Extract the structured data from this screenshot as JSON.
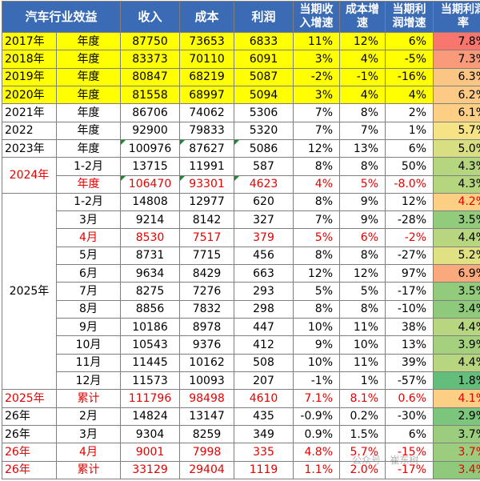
{
  "headers": [
    "汽车行业效益",
    "收入",
    "成本",
    "利润",
    "当期收入增速",
    "成本增速",
    "当期利润增速",
    "当期利润率"
  ],
  "header_big": [
    true,
    true,
    true,
    true,
    false,
    false,
    false,
    false
  ],
  "rows": [
    {
      "col0": "2017年",
      "col1": "年度",
      "revenue": "87750",
      "cost": "73653",
      "profit": "6833",
      "rev_growth": "11%",
      "cost_growth": "12%",
      "profit_growth": "6%",
      "margin": "7.8%",
      "margin_color": "#f8766d",
      "row_style": "yellow",
      "col0_red": false,
      "col1_red": false,
      "vals_red": false,
      "margin_red": false,
      "marks": false
    },
    {
      "col0": "2018年",
      "col1": "年度",
      "revenue": "83373",
      "cost": "70110",
      "profit": "6091",
      "rev_growth": "3%",
      "cost_growth": "4%",
      "profit_growth": "-5%",
      "margin": "7.3%",
      "margin_color": "#f99a7a",
      "row_style": "yellow",
      "col0_red": false,
      "col1_red": false,
      "vals_red": false,
      "margin_red": false,
      "marks": false
    },
    {
      "col0": "2019年",
      "col1": "年度",
      "revenue": "80847",
      "cost": "68219",
      "profit": "5087",
      "rev_growth": "-2%",
      "cost_growth": "-1%",
      "profit_growth": "-16%",
      "margin": "6.3%",
      "margin_color": "#fbc583",
      "row_style": "yellow",
      "col0_red": false,
      "col1_red": false,
      "vals_red": false,
      "margin_red": false,
      "marks": false
    },
    {
      "col0": "2020年",
      "col1": "年度",
      "revenue": "81558",
      "cost": "68997",
      "profit": "5094",
      "rev_growth": "3%",
      "cost_growth": "4%",
      "profit_growth": "4%",
      "margin": "6.2%",
      "margin_color": "#fcca84",
      "row_style": "yellow",
      "col0_red": false,
      "col1_red": false,
      "vals_red": false,
      "margin_red": false,
      "marks": false
    },
    {
      "col0": "2021年",
      "col1": "年度",
      "revenue": "86706",
      "cost": "74062",
      "profit": "5306",
      "rev_growth": "7%",
      "cost_growth": "8%",
      "profit_growth": "2%",
      "margin": "6.1%",
      "margin_color": "#fccf85",
      "row_style": "plain",
      "col0_red": false,
      "col1_red": false,
      "vals_red": false,
      "margin_red": false,
      "marks": false
    },
    {
      "col0": "2022",
      "col1": "年度",
      "revenue": "92900",
      "cost": "79833",
      "profit": "5320",
      "rev_growth": "7%",
      "cost_growth": "7%",
      "profit_growth": "1%",
      "margin": "5.7%",
      "margin_color": "#f5e385",
      "row_style": "plain",
      "col0_red": false,
      "col1_red": false,
      "vals_red": false,
      "margin_red": false,
      "marks": false
    },
    {
      "col0": "2023年",
      "col1": "年度",
      "revenue": "100976",
      "cost": "87627",
      "profit": "5086",
      "rev_growth": "12%",
      "cost_growth": "13%",
      "profit_growth": "6%",
      "margin": "5.0%",
      "margin_color": "#d7df82",
      "row_style": "plain",
      "col0_red": false,
      "col1_red": false,
      "vals_red": false,
      "margin_red": false,
      "marks": true
    },
    {
      "col0": "",
      "col1": "1-2月",
      "revenue": "13715",
      "cost": "11991",
      "profit": "587",
      "rev_growth": "8%",
      "cost_growth": "8%",
      "profit_growth": "50%",
      "margin": "4.3%",
      "margin_color": "#b5d57f",
      "row_style": "plain",
      "col0_red": false,
      "col1_red": false,
      "vals_red": false,
      "margin_red": false,
      "marks": false
    },
    {
      "col0": "",
      "col1": "年度",
      "revenue": "106470",
      "cost": "93301",
      "profit": "4623",
      "rev_growth": "4%",
      "cost_growth": "5%",
      "profit_growth": "-8.0%",
      "margin": "4.3%",
      "margin_color": "#b5d57f",
      "row_style": "plain",
      "col0_red": false,
      "col1_red": true,
      "vals_red": true,
      "margin_red": false,
      "marks": true
    },
    {
      "col0": "",
      "col1": "1-2月",
      "revenue": "14808",
      "cost": "12977",
      "profit": "620",
      "rev_growth": "8%",
      "cost_growth": "9%",
      "profit_growth": "12%",
      "margin": "4.2%",
      "margin_color": "#fccf85",
      "row_style": "plain",
      "col0_red": false,
      "col1_red": false,
      "vals_red": false,
      "margin_red": true,
      "marks": false
    },
    {
      "col0": "",
      "col1": "3月",
      "revenue": "9214",
      "cost": "8142",
      "profit": "327",
      "rev_growth": "7%",
      "cost_growth": "9%",
      "profit_growth": "-28%",
      "margin": "3.5%",
      "margin_color": "#93cb7d",
      "row_style": "plain",
      "col0_red": false,
      "col1_red": false,
      "vals_red": false,
      "margin_red": false,
      "marks": false
    },
    {
      "col0": "",
      "col1": "4月",
      "revenue": "8530",
      "cost": "7517",
      "profit": "379",
      "rev_growth": "5%",
      "cost_growth": "6%",
      "profit_growth": "-2%",
      "margin": "4.4%",
      "margin_color": "#b8d680",
      "row_style": "plain",
      "col0_red": false,
      "col1_red": true,
      "vals_red": true,
      "margin_red": false,
      "marks": false
    },
    {
      "col0": "",
      "col1": "5月",
      "revenue": "8731",
      "cost": "7715",
      "profit": "456",
      "rev_growth": "8%",
      "cost_growth": "8%",
      "profit_growth": "-27%",
      "margin": "5.2%",
      "margin_color": "#e0e183",
      "row_style": "plain",
      "col0_red": false,
      "col1_red": false,
      "vals_red": false,
      "margin_red": false,
      "marks": false
    },
    {
      "col0": "",
      "col1": "6月",
      "revenue": "9634",
      "cost": "8429",
      "profit": "663",
      "rev_growth": "12%",
      "cost_growth": "12%",
      "profit_growth": "97%",
      "margin": "6.9%",
      "margin_color": "#faa97d",
      "row_style": "plain",
      "col0_red": false,
      "col1_red": false,
      "vals_red": false,
      "margin_red": false,
      "marks": false
    },
    {
      "col0": "",
      "col1": "7月",
      "revenue": "8275",
      "cost": "7276",
      "profit": "293",
      "rev_growth": "5%",
      "cost_growth": "5%",
      "profit_growth": "-17%",
      "margin": "3.5%",
      "margin_color": "#93cb7d",
      "row_style": "plain",
      "col0_red": false,
      "col1_red": false,
      "vals_red": false,
      "margin_red": false,
      "marks": false
    },
    {
      "col0": "",
      "col1": "8月",
      "revenue": "8856",
      "cost": "7832",
      "profit": "298",
      "rev_growth": "8%",
      "cost_growth": "8%",
      "profit_growth": "-10%",
      "margin": "3.4%",
      "margin_color": "#8fca7c",
      "row_style": "plain",
      "col0_red": false,
      "col1_red": false,
      "vals_red": false,
      "margin_red": false,
      "marks": false
    },
    {
      "col0": "",
      "col1": "9月",
      "revenue": "10186",
      "cost": "8978",
      "profit": "447",
      "rev_growth": "10%",
      "cost_growth": "11%",
      "profit_growth": "38%",
      "margin": "4.4%",
      "margin_color": "#b8d680",
      "row_style": "plain",
      "col0_red": false,
      "col1_red": false,
      "vals_red": false,
      "margin_red": false,
      "marks": false
    },
    {
      "col0": "",
      "col1": "10月",
      "revenue": "10543",
      "cost": "9376",
      "profit": "412",
      "rev_growth": "9%",
      "cost_growth": "10%",
      "profit_growth": "13%",
      "margin": "3.9%",
      "margin_color": "#a5d07e",
      "row_style": "plain",
      "col0_red": false,
      "col1_red": false,
      "vals_red": false,
      "margin_red": false,
      "marks": false
    },
    {
      "col0": "",
      "col1": "11月",
      "revenue": "11445",
      "cost": "10162",
      "profit": "508",
      "rev_growth": "10%",
      "cost_growth": "11%",
      "profit_growth": "39%",
      "margin": "4.4%",
      "margin_color": "#b8d680",
      "row_style": "plain",
      "col0_red": false,
      "col1_red": false,
      "vals_red": false,
      "margin_red": false,
      "marks": false
    },
    {
      "col0": "",
      "col1": "12月",
      "revenue": "11573",
      "cost": "10093",
      "profit": "207",
      "rev_growth": "-1%",
      "cost_growth": "1%",
      "profit_growth": "-57%",
      "margin": "1.8%",
      "margin_color": "#63be7b",
      "row_style": "plain",
      "col0_red": false,
      "col1_red": false,
      "vals_red": false,
      "margin_red": false,
      "marks": false
    },
    {
      "col0": "2025年",
      "col1": "累计",
      "revenue": "111796",
      "cost": "98498",
      "profit": "4610",
      "rev_growth": "7.1%",
      "cost_growth": "8.1%",
      "profit_growth": "0.6%",
      "margin": "4.1%",
      "margin_color": "#fccf85",
      "row_style": "plain",
      "col0_red": true,
      "col1_red": true,
      "vals_red": true,
      "margin_red": true,
      "marks": false
    },
    {
      "col0": "26年",
      "col1": "2月",
      "revenue": "14824",
      "cost": "13147",
      "profit": "435",
      "rev_growth": "-0.9%",
      "cost_growth": "0.2%",
      "profit_growth": "-30%",
      "margin": "2.9%",
      "margin_color": "#7cc57c",
      "row_style": "plain",
      "col0_red": false,
      "col1_red": false,
      "vals_red": false,
      "margin_red": false,
      "marks": false
    },
    {
      "col0": "26年",
      "col1": "3月",
      "revenue": "9304",
      "cost": "8259",
      "profit": "349",
      "rev_growth": "0.9%",
      "cost_growth": "1.5%",
      "profit_growth": "6%",
      "margin": "3.7%",
      "margin_color": "#9ccd7e",
      "row_style": "plain",
      "col0_red": false,
      "col1_red": false,
      "vals_red": false,
      "margin_red": false,
      "marks": false
    },
    {
      "col0": "26年",
      "col1": "4月",
      "revenue": "9001",
      "cost": "7998",
      "profit": "335",
      "rev_growth": "4.8%",
      "cost_growth": "5.7%",
      "profit_growth": "-15%",
      "margin": "3.7%",
      "margin_color": "#9ccd7e",
      "row_style": "plain",
      "col0_red": true,
      "col1_red": true,
      "vals_red": true,
      "margin_red": true,
      "marks": false
    },
    {
      "col0": "26年",
      "col1": "累计",
      "revenue": "33129",
      "cost": "29404",
      "profit": "1119",
      "rev_growth": "1.1%",
      "cost_growth": "2.0%",
      "profit_growth": "-17%",
      "margin": "3.4%",
      "margin_color": "#8fca7c",
      "row_style": "plain",
      "col0_red": true,
      "col1_red": true,
      "vals_red": true,
      "margin_red": true,
      "marks": false
    }
  ],
  "merged_labels": {
    "y2024": "2024年",
    "y2025": "2025年"
  },
  "watermark": "公众号 · 崔东树"
}
